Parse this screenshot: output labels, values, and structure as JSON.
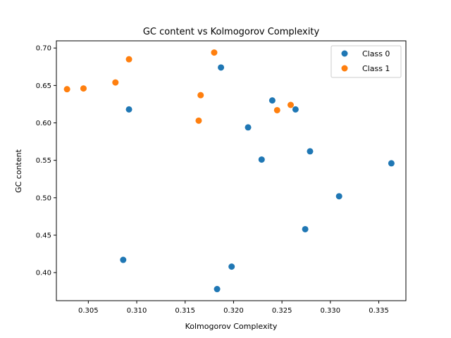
{
  "chart_data": {
    "type": "scatter",
    "title": "GC content vs Kolmogorov Complexity",
    "xlabel": "Kolmogorov Complexity",
    "ylabel": "GC content",
    "xlim": [
      0.3017,
      0.3378
    ],
    "ylim": [
      0.3625,
      0.7096
    ],
    "xticks": [
      "0.305",
      "0.310",
      "0.315",
      "0.320",
      "0.325",
      "0.330",
      "0.335"
    ],
    "yticks": [
      "0.40",
      "0.45",
      "0.50",
      "0.55",
      "0.60",
      "0.65",
      "0.70"
    ],
    "xtick_values": [
      0.305,
      0.31,
      0.315,
      0.32,
      0.325,
      0.33,
      0.335
    ],
    "ytick_values": [
      0.4,
      0.45,
      0.5,
      0.55,
      0.6,
      0.65,
      0.7
    ],
    "grid": false,
    "legend_position": "top-right",
    "series": [
      {
        "name": "Class 0",
        "color": "#1f77b4",
        "points": [
          [
            0.3092,
            0.618
          ],
          [
            0.3187,
            0.674
          ],
          [
            0.324,
            0.63
          ],
          [
            0.3264,
            0.618
          ],
          [
            0.3215,
            0.594
          ],
          [
            0.3279,
            0.562
          ],
          [
            0.3229,
            0.551
          ],
          [
            0.3363,
            0.546
          ],
          [
            0.3309,
            0.502
          ],
          [
            0.3274,
            0.458
          ],
          [
            0.3086,
            0.417
          ],
          [
            0.3198,
            0.408
          ],
          [
            0.3183,
            0.378
          ]
        ]
      },
      {
        "name": "Class 1",
        "color": "#ff7f0e",
        "points": [
          [
            0.3028,
            0.645
          ],
          [
            0.3045,
            0.646
          ],
          [
            0.3078,
            0.654
          ],
          [
            0.3092,
            0.685
          ],
          [
            0.3166,
            0.637
          ],
          [
            0.3164,
            0.603
          ],
          [
            0.318,
            0.694
          ],
          [
            0.3245,
            0.617
          ],
          [
            0.3259,
            0.624
          ]
        ]
      }
    ]
  }
}
